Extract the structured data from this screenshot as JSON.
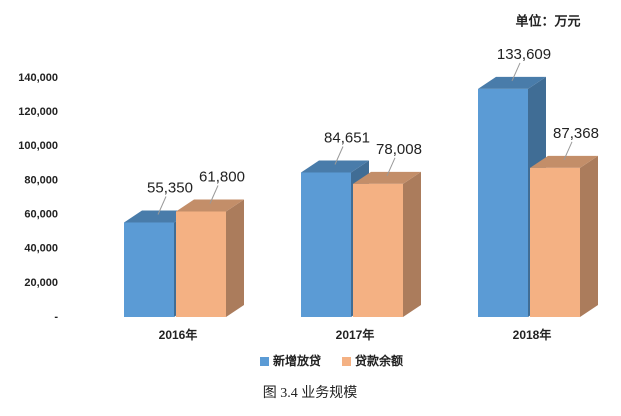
{
  "chart_data": {
    "type": "bar3d",
    "unit": "单位：万元",
    "caption": "图 3.4 业务规模",
    "categories": [
      "2016年",
      "2017年",
      "2018年"
    ],
    "series": [
      {
        "name": "新增放贷",
        "color": "#5b9bd5",
        "values": [
          55350,
          84651,
          133609
        ],
        "value_labels": [
          "55,350",
          "84,651",
          "133,609"
        ]
      },
      {
        "name": "贷款余额",
        "color": "#f4b183",
        "values": [
          61800,
          78008,
          87368
        ],
        "value_labels": [
          "61,800",
          "78,008",
          "87,368"
        ]
      }
    ],
    "ylim": [
      0,
      140000
    ],
    "yticks": [
      {
        "value": 0,
        "label": "-"
      },
      {
        "value": 20000,
        "label": "20,000"
      },
      {
        "value": 40000,
        "label": "40,000"
      },
      {
        "value": 60000,
        "label": "60,000"
      },
      {
        "value": 80000,
        "label": "80,000"
      },
      {
        "value": 100000,
        "label": "100,000"
      },
      {
        "value": 120000,
        "label": "120,000"
      },
      {
        "value": 140000,
        "label": "140,000"
      }
    ],
    "legend": "bottom"
  }
}
